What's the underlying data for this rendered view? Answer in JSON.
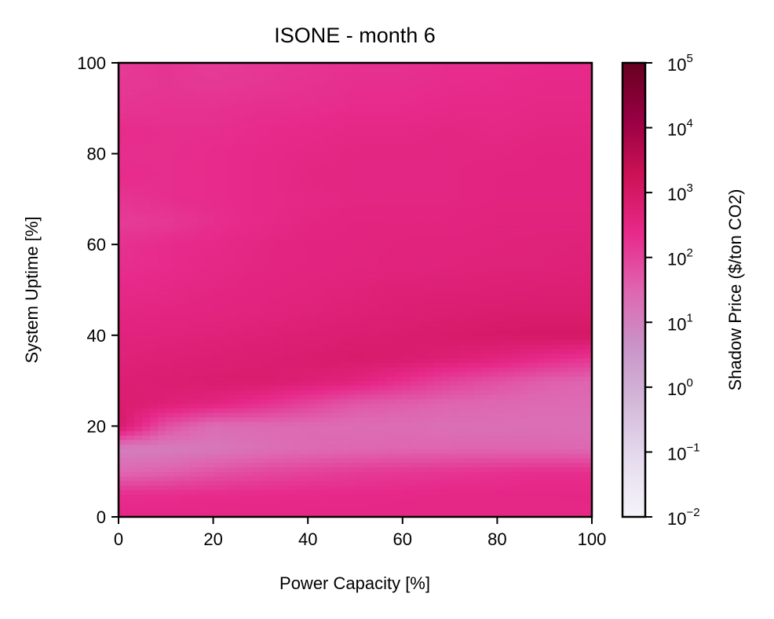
{
  "chart_data": {
    "type": "heatmap",
    "title": "ISONE - month 6",
    "xlabel": "Power Capacity [%]",
    "ylabel": "System Uptime [%]",
    "xlim": [
      0,
      100
    ],
    "ylim": [
      0,
      100
    ],
    "x_ticks": [
      "0",
      "20",
      "40",
      "60",
      "80",
      "100"
    ],
    "y_ticks": [
      "0",
      "20",
      "40",
      "60",
      "80",
      "100"
    ],
    "colorbar": {
      "label": "Shadow Price ($/ton CO2)",
      "scale": "log",
      "range": [
        0.01,
        100000
      ],
      "tick_base": "10",
      "tick_exponents": [
        "−2",
        "−1",
        "0",
        "1",
        "2",
        "3",
        "4",
        "5"
      ],
      "colors": [
        "#f5f3f9",
        "#e6dcee",
        "#d4b9da",
        "#c994c7",
        "#df65b0",
        "#e7298a",
        "#ce1256",
        "#980043",
        "#67001f"
      ]
    },
    "x": [
      0,
      10,
      20,
      30,
      40,
      50,
      60,
      70,
      80,
      90,
      100
    ],
    "y": [
      0,
      5,
      10,
      15,
      20,
      25,
      30,
      35,
      40,
      45,
      50,
      55,
      60,
      65,
      70,
      75,
      80,
      85,
      90,
      95,
      100
    ],
    "z_log10": [
      [
        2.45,
        2.45,
        2.45,
        2.45,
        2.45,
        2.45,
        2.45,
        2.45,
        2.45,
        2.45,
        2.45
      ],
      [
        2.3,
        2.32,
        2.34,
        2.36,
        2.38,
        2.4,
        2.42,
        2.44,
        2.45,
        2.46,
        2.47
      ],
      [
        1.45,
        1.55,
        1.75,
        1.9,
        2.0,
        2.1,
        2.15,
        2.2,
        2.25,
        2.3,
        2.3
      ],
      [
        1.0,
        1.05,
        1.15,
        1.3,
        1.4,
        1.45,
        1.5,
        1.5,
        1.5,
        1.5,
        1.45
      ],
      [
        2.9,
        1.8,
        1.35,
        1.4,
        1.4,
        1.35,
        1.35,
        1.3,
        1.3,
        1.3,
        1.3
      ],
      [
        2.85,
        2.7,
        2.55,
        2.3,
        2.0,
        1.7,
        1.6,
        1.5,
        1.45,
        1.4,
        1.4
      ],
      [
        2.75,
        2.8,
        2.85,
        2.85,
        2.75,
        2.6,
        2.3,
        2.0,
        1.8,
        1.6,
        1.5
      ],
      [
        2.65,
        2.7,
        2.75,
        2.8,
        2.85,
        2.9,
        2.85,
        2.75,
        2.6,
        2.4,
        2.2
      ],
      [
        2.6,
        2.62,
        2.65,
        2.7,
        2.75,
        2.8,
        2.85,
        2.9,
        2.95,
        3.0,
        3.0
      ],
      [
        2.5,
        2.52,
        2.55,
        2.6,
        2.65,
        2.7,
        2.75,
        2.8,
        2.85,
        2.85,
        2.85
      ],
      [
        2.4,
        2.45,
        2.5,
        2.55,
        2.6,
        2.65,
        2.7,
        2.7,
        2.72,
        2.75,
        2.75
      ],
      [
        2.3,
        2.35,
        2.45,
        2.5,
        2.55,
        2.58,
        2.6,
        2.62,
        2.65,
        2.65,
        2.7
      ],
      [
        2.25,
        2.35,
        2.4,
        2.5,
        2.55,
        2.55,
        2.6,
        2.6,
        2.62,
        2.65,
        2.65
      ],
      [
        2.1,
        2.15,
        2.3,
        2.4,
        2.5,
        2.55,
        2.55,
        2.55,
        2.6,
        2.6,
        2.6
      ],
      [
        2.2,
        2.3,
        2.35,
        2.4,
        2.45,
        2.5,
        2.5,
        2.5,
        2.55,
        2.55,
        2.55
      ],
      [
        2.35,
        2.3,
        2.35,
        2.4,
        2.5,
        2.5,
        2.5,
        2.5,
        2.55,
        2.55,
        2.55
      ],
      [
        2.3,
        2.3,
        2.35,
        2.4,
        2.45,
        2.5,
        2.5,
        2.5,
        2.5,
        2.55,
        2.55
      ],
      [
        2.35,
        2.3,
        2.3,
        2.35,
        2.4,
        2.45,
        2.45,
        2.5,
        2.45,
        2.5,
        2.5
      ],
      [
        2.2,
        2.25,
        2.25,
        2.3,
        2.3,
        2.35,
        2.35,
        2.4,
        2.4,
        2.45,
        2.45
      ],
      [
        2.15,
        2.2,
        2.15,
        2.2,
        2.25,
        2.3,
        2.3,
        2.35,
        2.35,
        2.4,
        2.4
      ],
      [
        2.1,
        2.2,
        2.1,
        2.15,
        2.2,
        2.25,
        2.25,
        2.3,
        2.3,
        2.35,
        2.35
      ]
    ]
  }
}
